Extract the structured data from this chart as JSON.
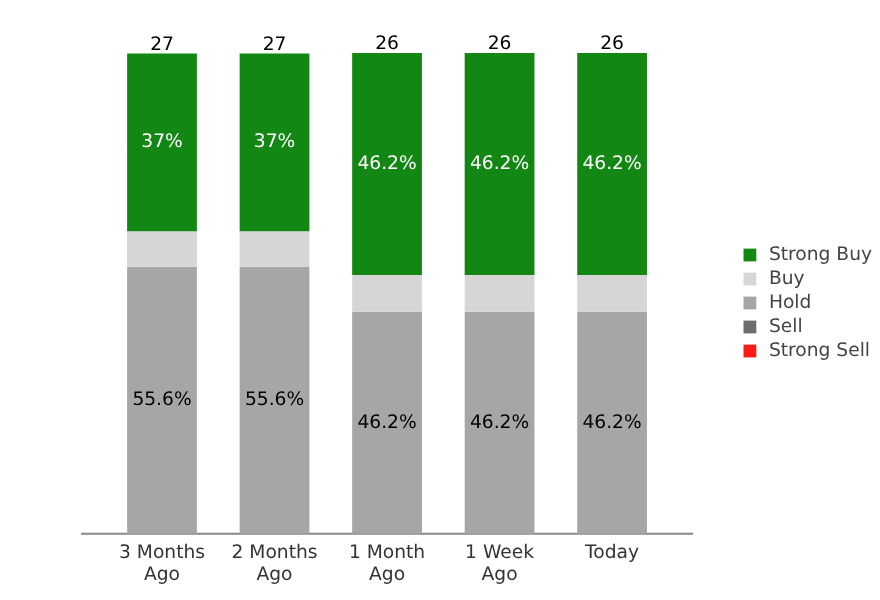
{
  "chart_data": {
    "type": "bar",
    "stacked": true,
    "categories": [
      "3 Months Ago",
      "2 Months Ago",
      "1 Month Ago",
      "1 Week Ago",
      "Today"
    ],
    "series": [
      {
        "name": "Strong Sell",
        "color": "#ff1a1a",
        "values": [
          0,
          0,
          0,
          0,
          0
        ],
        "value_labels": [
          null,
          null,
          null,
          null,
          null
        ]
      },
      {
        "name": "Sell",
        "color": "#6d6d6d",
        "values": [
          0,
          0,
          0,
          0,
          0
        ],
        "value_labels": [
          null,
          null,
          null,
          null,
          null
        ]
      },
      {
        "name": "Hold",
        "color": "#a6a6a6",
        "values": [
          55.6,
          55.6,
          46.2,
          46.2,
          46.2
        ],
        "value_labels": [
          "55.6%",
          "55.6%",
          "46.2%",
          "46.2%",
          "46.2%"
        ]
      },
      {
        "name": "Buy",
        "color": "#d6d6d6",
        "values": [
          7.4,
          7.4,
          7.7,
          7.7,
          7.7
        ],
        "value_labels": [
          null,
          null,
          null,
          null,
          null
        ]
      },
      {
        "name": "Strong Buy",
        "color": "#138713",
        "values": [
          37,
          37,
          46.2,
          46.2,
          46.2
        ],
        "value_labels": [
          "37%",
          "37%",
          "46.2%",
          "46.2%",
          "46.2%"
        ]
      }
    ],
    "annotations": [
      {
        "text": "27",
        "x": "3 Months Ago"
      },
      {
        "text": "27",
        "x": "2 Months Ago"
      },
      {
        "text": "26",
        "x": "1 Month Ago"
      },
      {
        "text": "26",
        "x": "1 Week Ago"
      },
      {
        "text": "26",
        "x": "Today"
      }
    ],
    "legend": "right"
  }
}
